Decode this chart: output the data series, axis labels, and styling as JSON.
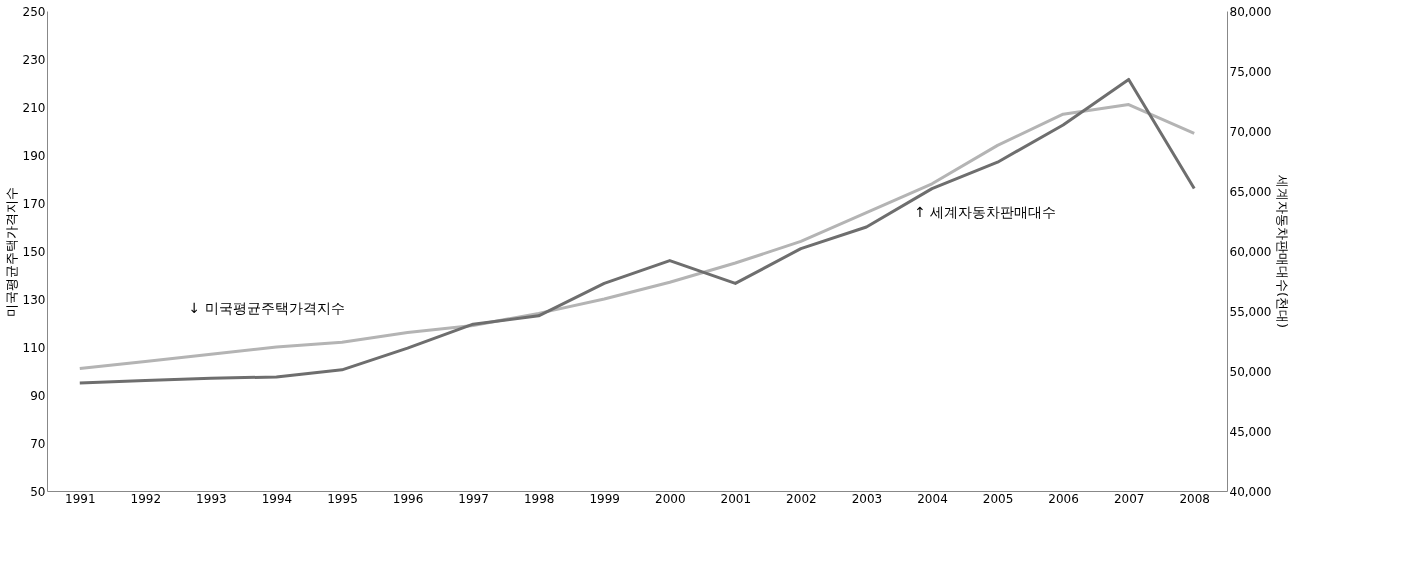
{
  "chart_data": {
    "type": "line",
    "categories": [
      "1991",
      "1992",
      "1993",
      "1994",
      "1995",
      "1996",
      "1997",
      "1998",
      "1999",
      "2000",
      "2001",
      "2002",
      "2003",
      "2004",
      "2005",
      "2006",
      "2007",
      "2008"
    ],
    "ylabel": "미국평균주택가격지수",
    "y2label": "세계자동차판매대수(천대)",
    "ylim": [
      50,
      250
    ],
    "yticks": [
      50,
      70,
      90,
      110,
      130,
      150,
      170,
      190,
      210,
      230,
      250
    ],
    "y2lim": [
      40000,
      80000
    ],
    "y2ticks": [
      {
        "value": 40000,
        "label": "40,000"
      },
      {
        "value": 45000,
        "label": "45,000"
      },
      {
        "value": 50000,
        "label": "50,000"
      },
      {
        "value": 55000,
        "label": "55,000"
      },
      {
        "value": 60000,
        "label": "60,000"
      },
      {
        "value": 65000,
        "label": "65,000"
      },
      {
        "value": 70000,
        "label": "70,000"
      },
      {
        "value": 75000,
        "label": "75,000"
      },
      {
        "value": 80000,
        "label": "80,000"
      }
    ],
    "grid": false,
    "line_style": "solid",
    "marker": "none",
    "series": [
      {
        "name": "↓  미국평균주택가격지수",
        "color": "#b4b4b4",
        "values": [
          101,
          104,
          107,
          110,
          112,
          116,
          119,
          124,
          130,
          137,
          145,
          154,
          166,
          178,
          194,
          207,
          211,
          199
        ]
      },
      {
        "name": "↑  세계자동차판매대수",
        "color": "#6e6e6e",
        "axis": "y2",
        "values": [
          49000,
          49200,
          49400,
          49500,
          50100,
          51900,
          53900,
          54600,
          57300,
          59200,
          57300,
          60200,
          62000,
          65200,
          67400,
          70500,
          74300,
          65200
        ]
      }
    ]
  }
}
